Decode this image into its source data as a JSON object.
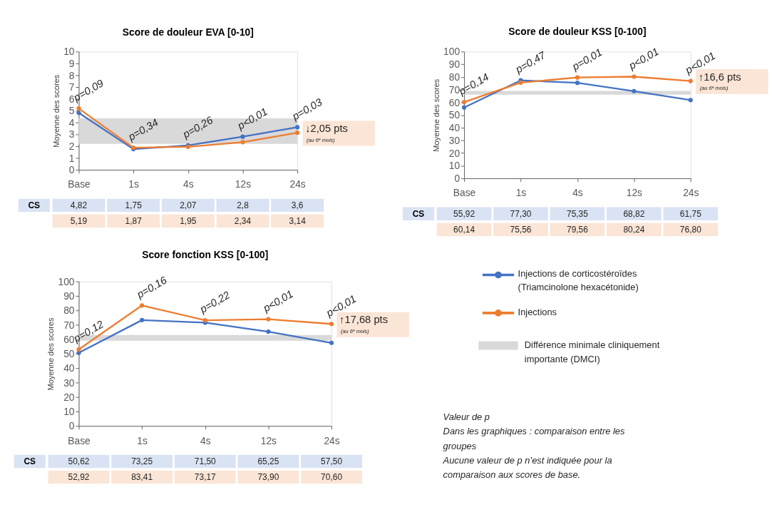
{
  "chart_data": [
    {
      "type": "line",
      "title": "Score de douleur EVA [0-10]",
      "ylabel": "Moyenne des scores",
      "categories": [
        "Base",
        "1s",
        "4s",
        "12s",
        "24s"
      ],
      "ylim": [
        0,
        10
      ],
      "yticks": [
        0,
        1,
        2,
        3,
        4,
        5,
        6,
        7,
        8,
        9,
        10
      ],
      "marker": "circle",
      "series": [
        {
          "color": "#4472c4",
          "values": [
            4.82,
            1.75,
            2.07,
            2.8,
            3.6
          ],
          "value_labels": [
            "4,82",
            "1,75",
            "2,07",
            "2,8",
            "3,6"
          ]
        },
        {
          "color": "#ed7d31",
          "values": [
            5.19,
            1.87,
            1.95,
            2.34,
            3.14
          ],
          "value_labels": [
            "5,19",
            "1,87",
            "1,95",
            "2,34",
            "3,14"
          ]
        }
      ],
      "bands": [
        {
          "axis": "y",
          "from": 2.2,
          "to": 4.35,
          "color": "#d9d9d9"
        }
      ],
      "annotations": [
        "↓2,05 pts",
        "(au 6ᵉ mois)",
        "CS",
        "p=0,09",
        "p=0,34",
        "p=0,26",
        "p<0,01",
        "p=0,03"
      ]
    },
    {
      "type": "line",
      "title": "Score de douleur KSS [0-100]",
      "ylabel": "Moyenne des scores",
      "categories": [
        "Base",
        "1s",
        "4s",
        "12s",
        "24s"
      ],
      "ylim": [
        0,
        100
      ],
      "yticks": [
        0,
        10,
        20,
        30,
        40,
        50,
        60,
        70,
        80,
        90,
        100
      ],
      "marker": "circle",
      "series": [
        {
          "color": "#4472c4",
          "values": [
            55.92,
            77.3,
            75.35,
            68.82,
            61.75
          ],
          "value_labels": [
            "55,92",
            "77,30",
            "75,35",
            "68,82",
            "61,75"
          ]
        },
        {
          "color": "#ed7d31",
          "values": [
            60.14,
            75.56,
            79.56,
            80.24,
            76.8
          ],
          "value_labels": [
            "60,14",
            "75,56",
            "79,56",
            "80,24",
            "76,80"
          ]
        }
      ],
      "bands": [
        {
          "axis": "y",
          "from": 66,
          "to": 69,
          "color": "#d9d9d9"
        }
      ],
      "annotations": [
        "↑16,6 pts",
        "(au 6ᵉ mois)",
        "CS",
        "p=0,14",
        "p=0,47",
        "p=0,01",
        "p<0,01",
        "p<0,01"
      ]
    },
    {
      "type": "line",
      "title": "Score fonction KSS [0-100]",
      "ylabel": "Moyenne des scores",
      "categories": [
        "Base",
        "1s",
        "4s",
        "12s",
        "24s"
      ],
      "ylim": [
        0,
        100
      ],
      "yticks": [
        0,
        10,
        20,
        30,
        40,
        50,
        60,
        70,
        80,
        90,
        100
      ],
      "marker": "circle",
      "legend": "right",
      "series": [
        {
          "name": "Injections de corticostéroïdes (Triamcinolone hexacétonide)",
          "color": "#4472c4",
          "values": [
            50.62,
            73.25,
            71.5,
            65.25,
            57.5
          ],
          "value_labels": [
            "50,62",
            "73,25",
            "71,50",
            "65,25",
            "57,50"
          ]
        },
        {
          "name": "Injections",
          "color": "#ed7d31",
          "values": [
            52.92,
            83.41,
            73.17,
            73.9,
            70.6
          ],
          "value_labels": [
            "52,92",
            "83,41",
            "73,17",
            "73,90",
            "70,60"
          ]
        }
      ],
      "bands": [
        {
          "axis": "y",
          "from": 59,
          "to": 63,
          "color": "#d9d9d9",
          "label": "Différence minimale cliniquement importante (DMCI)"
        }
      ],
      "annotations": [
        "↑17,68 pts",
        "(au 6ᵉ mois)",
        "CS",
        "p=0,12",
        "p=0,16",
        "p=0,22",
        "p<0,01",
        "p<0,01",
        "Valeur de p",
        "Dans les graphiques : comparaison entre les groupes",
        "Aucune valeur de p n’est indiquée pour la comparaison aux scores de base."
      ]
    }
  ]
}
